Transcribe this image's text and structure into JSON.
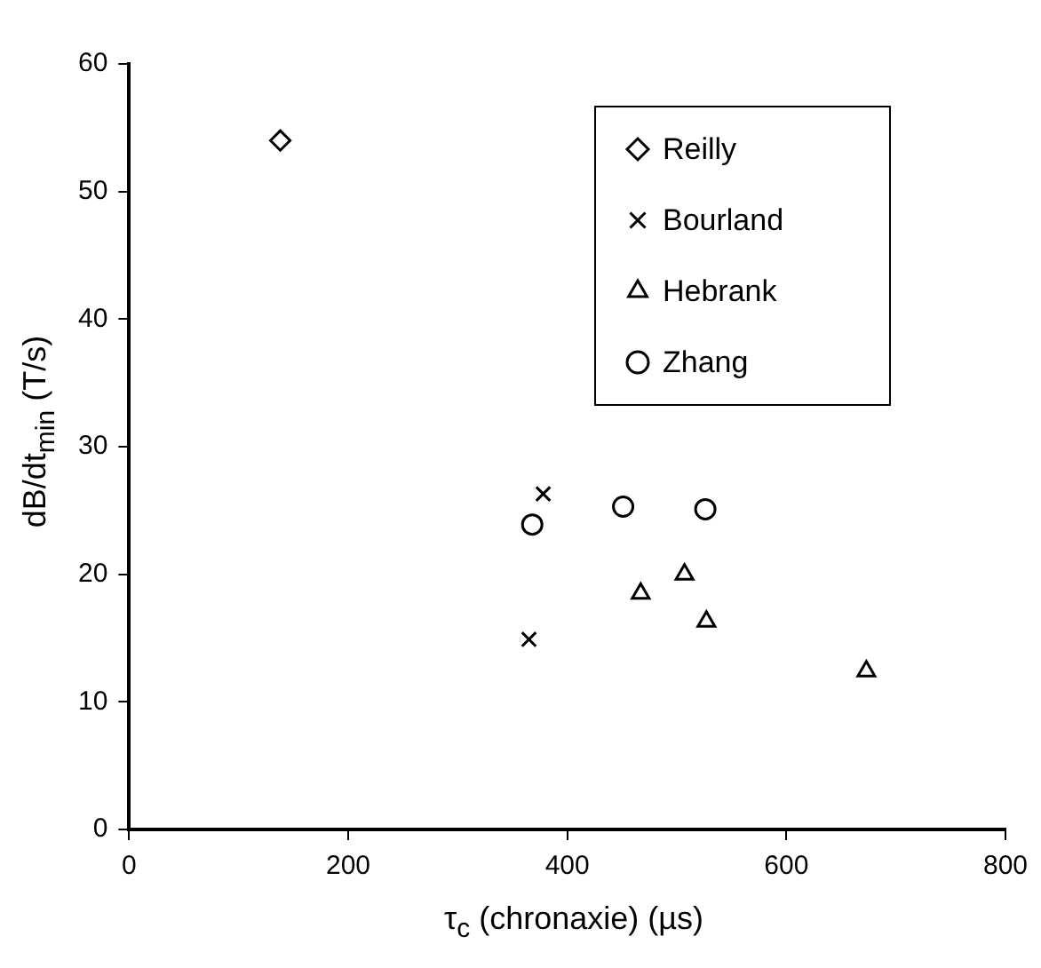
{
  "chart_data": {
    "type": "scatter",
    "xlabel": "τ$_{c}$ (chronaxie) (µs)",
    "ylabel": "dB/dt$_{min}$ (T/s)",
    "xlim": [
      0,
      800
    ],
    "xticks": [
      0,
      200,
      400,
      600,
      800
    ],
    "ylim": [
      0,
      60
    ],
    "yticks": [
      0,
      10,
      20,
      30,
      40,
      50,
      60
    ],
    "grid": false,
    "legend": "top right",
    "series": [
      {
        "name": "Reilly",
        "color": "#000000",
        "marker": "diamond",
        "x": [
          138
        ],
        "values": [
          54.0
        ]
      },
      {
        "name": "Bourland",
        "color": "#000000",
        "marker": "cross",
        "x": [
          378,
          365
        ],
        "values": [
          26.3,
          14.9
        ]
      },
      {
        "name": "Hebrank",
        "color": "#000000",
        "marker": "triangle",
        "x": [
          467,
          507,
          527,
          673
        ],
        "values": [
          18.5,
          20.0,
          16.3,
          12.4
        ]
      },
      {
        "name": "Zhang",
        "color": "#000000",
        "marker": "circle",
        "x": [
          368,
          451,
          526
        ],
        "values": [
          23.9,
          25.3,
          25.1
        ]
      }
    ]
  }
}
